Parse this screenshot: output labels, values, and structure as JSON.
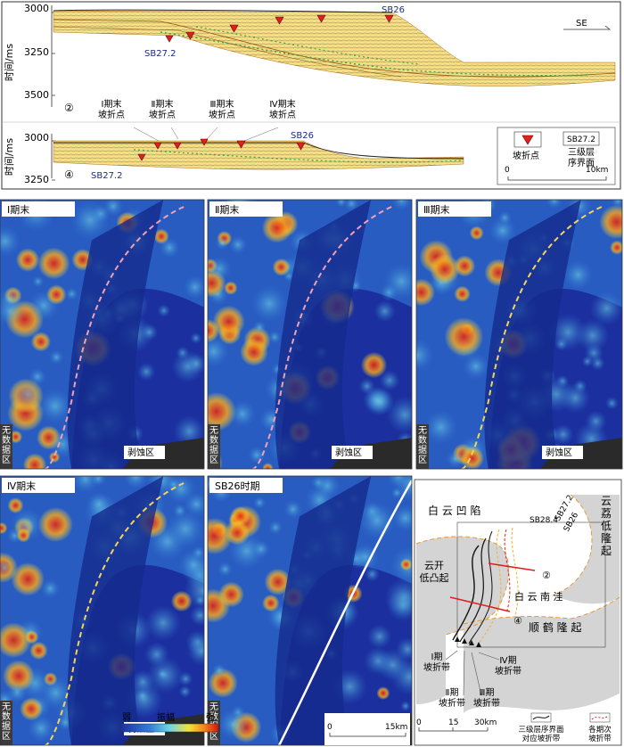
{
  "sections": {
    "ylabel": "时间/ms",
    "ticks": [
      "3000",
      "3250",
      "3500"
    ],
    "ticks2": [
      "3000",
      "3250"
    ],
    "circle2": "②",
    "circle4": "④",
    "se": "SE",
    "sb26": "SB26",
    "sb272": "SB27.2",
    "phases": [
      "Ⅰ期末\n坡折点",
      "Ⅱ期末\n坡折点",
      "Ⅲ期末\n坡折点",
      "Ⅳ期末\n坡折点"
    ],
    "legend_break": "坡折点",
    "legend_sb272": "SB27.2",
    "legend_seq": "三级层\n序界面",
    "scale_0": "0",
    "scale_10": "10km"
  },
  "maps": {
    "titles": [
      "Ⅰ期末",
      "Ⅱ期末",
      "Ⅲ期末",
      "Ⅳ期末",
      "SB26时期"
    ],
    "nodata": "无\n数\n据\n区",
    "erosion": "剥蚀区",
    "colorbar_weak": "弱",
    "colorbar_mid": "振幅",
    "colorbar_strong": "强",
    "scale_0": "0",
    "scale_15": "15km"
  },
  "location_map": {
    "baiyun_sag": "白 云 凹 陷",
    "yunli": "云\n荔\n低\n隆\n起",
    "yunkai": "云开\n低凸起",
    "baiyun_south": "白 云 南 洼",
    "shunhe": "顺  鹤  隆  起",
    "sb284": "SB28.4",
    "sb272": "SB27.2",
    "sb26": "SB26",
    "circle2": "②",
    "circle4": "④",
    "belt1": "Ⅰ期\n坡折带",
    "belt2": "Ⅱ期\n坡折带",
    "belt3": "Ⅲ期\n坡折带",
    "belt4": "Ⅳ期\n坡折带",
    "scale": [
      "0",
      "15",
      "30km"
    ],
    "legend_seq": "三级层序界面\n对应坡折带",
    "legend_phase": "各期次\n坡折带"
  },
  "colors": {
    "break_marker": "#e02020",
    "map_dark": "#1b2f9e",
    "map_hot": "#e81e10",
    "map_yellow": "#f4e23a",
    "dashed_pink": "#f2a0b4",
    "dashed_yellow": "#f5d35a"
  }
}
